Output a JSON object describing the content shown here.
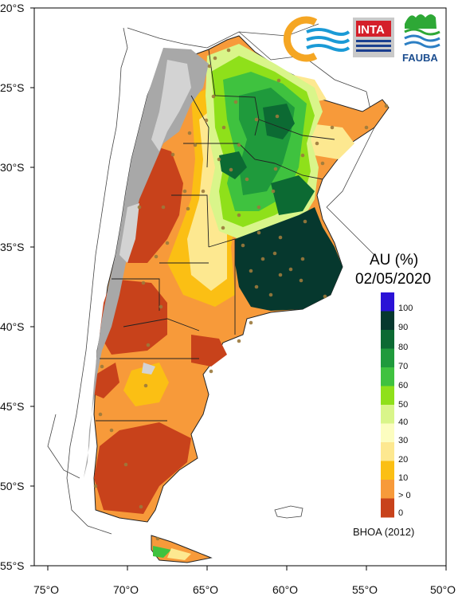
{
  "map": {
    "title": "AU (%)",
    "date": "02/05/2020",
    "source": "BHOA (2012)",
    "lat_ticks": [
      "20°S",
      "25°S",
      "30°S",
      "35°S",
      "40°S",
      "45°S",
      "50°S",
      "55°S"
    ],
    "lon_ticks": [
      "75°O",
      "70°O",
      "65°O",
      "60°O",
      "55°O",
      "50°O"
    ]
  },
  "legend": {
    "labels": [
      "100",
      "90",
      "80",
      "70",
      "60",
      "50",
      "40",
      "30",
      "20",
      "10",
      "> 0",
      "0"
    ],
    "colors": [
      "#2a12d6",
      "#06382e",
      "#0c6a33",
      "#1f9a3c",
      "#3fc23f",
      "#8fe01a",
      "#d9f58a",
      "#fcfdc0",
      "#fde890",
      "#fbbf14",
      "#f79a3a",
      "#c8421b"
    ]
  },
  "logos": {
    "inta": "INTA",
    "fauba": "FAUBA"
  },
  "colors": {
    "terrain_gray": "#a8a8a8",
    "station_dot": "#9c7a3c",
    "border": "#222222"
  }
}
